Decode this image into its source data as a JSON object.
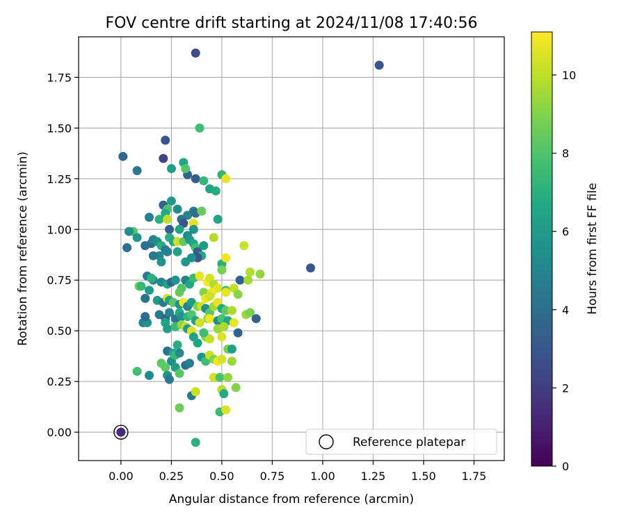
{
  "chart_data": {
    "type": "scatter",
    "title": "FOV centre drift starting at 2024/11/08 17:40:56",
    "xlabel": "Angular distance from reference (arcmin)",
    "ylabel": "Rotation from reference (arcmin)",
    "xlim": [
      -0.21,
      1.9
    ],
    "ylim": [
      -0.14,
      1.95
    ],
    "xticks": [
      0.0,
      0.25,
      0.5,
      0.75,
      1.0,
      1.25,
      1.5,
      1.75
    ],
    "xtick_labels": [
      "0.00",
      "0.25",
      "0.50",
      "0.75",
      "1.00",
      "1.25",
      "1.50",
      "1.75"
    ],
    "yticks": [
      0.0,
      0.25,
      0.5,
      0.75,
      1.0,
      1.25,
      1.5,
      1.75
    ],
    "ytick_labels": [
      "0.00",
      "0.25",
      "0.50",
      "0.75",
      "1.00",
      "1.25",
      "1.50",
      "1.75"
    ],
    "grid": true,
    "legend": {
      "placement": "lower-right",
      "entries": [
        "Reference platepar"
      ]
    },
    "colorbar": {
      "label": "Hours from first FF file",
      "colormap": "viridis",
      "range": [
        0,
        11.1
      ],
      "ticks": [
        0,
        2,
        4,
        6,
        8,
        10
      ],
      "tick_labels": [
        "0",
        "2",
        "4",
        "6",
        "8",
        "10"
      ]
    },
    "reference_point": {
      "x": 0.0,
      "y": 0.0
    },
    "series": [
      {
        "values": [
          [
            0.37,
            1.87,
            2.6
          ],
          [
            1.28,
            1.81,
            3.0
          ],
          [
            0.94,
            0.81,
            3.0
          ],
          [
            0.22,
            1.44,
            2.9
          ],
          [
            0.21,
            1.35,
            2.2
          ],
          [
            0.01,
            1.36,
            3.7
          ],
          [
            0.08,
            1.29,
            4.4
          ],
          [
            0.25,
            1.3,
            6.1
          ],
          [
            0.33,
            1.27,
            3.6
          ],
          [
            0.37,
            1.25,
            3.3
          ],
          [
            0.31,
            1.33,
            6.5
          ],
          [
            0.32,
            1.3,
            8.1
          ],
          [
            0.39,
            1.5,
            7.6
          ],
          [
            0.41,
            1.24,
            7.3
          ],
          [
            0.44,
            1.2,
            6.4
          ],
          [
            0.47,
            1.19,
            6.8
          ],
          [
            0.5,
            1.27,
            7.3
          ],
          [
            0.52,
            1.25,
            10.7
          ],
          [
            0.21,
            1.12,
            3.5
          ],
          [
            0.25,
            1.14,
            5.9
          ],
          [
            0.23,
            1.1,
            7.9
          ],
          [
            0.22,
            1.08,
            6.7
          ],
          [
            0.28,
            1.1,
            5.3
          ],
          [
            0.33,
            1.07,
            5.1
          ],
          [
            0.36,
            1.09,
            4.5
          ],
          [
            0.37,
            1.08,
            3.9
          ],
          [
            0.4,
            1.09,
            8.5
          ],
          [
            0.19,
            1.05,
            7.1
          ],
          [
            0.23,
            1.05,
            10.0
          ],
          [
            0.3,
            1.05,
            4.2
          ],
          [
            0.14,
            1.06,
            4.8
          ],
          [
            0.31,
            1.03,
            2.8
          ],
          [
            0.36,
            1.03,
            10.6
          ],
          [
            0.24,
            1.0,
            3.3
          ],
          [
            0.29,
            1.0,
            6.5
          ],
          [
            0.36,
            1.0,
            5.6
          ],
          [
            0.48,
            1.05,
            6.5
          ],
          [
            0.06,
            0.99,
            8.0
          ],
          [
            0.04,
            0.99,
            5.4
          ],
          [
            0.03,
            0.91,
            4.0
          ],
          [
            0.08,
            0.96,
            5.8
          ],
          [
            0.12,
            0.92,
            4.1
          ],
          [
            0.15,
            0.93,
            3.9
          ],
          [
            0.16,
            0.95,
            4.9
          ],
          [
            0.18,
            0.94,
            5.4
          ],
          [
            0.2,
            0.92,
            6.9
          ],
          [
            0.22,
            0.9,
            4.5
          ],
          [
            0.24,
            0.96,
            7.0
          ],
          [
            0.26,
            0.94,
            6.6
          ],
          [
            0.28,
            0.94,
            10.2
          ],
          [
            0.31,
            0.94,
            8.4
          ],
          [
            0.33,
            0.97,
            5.3
          ],
          [
            0.34,
            0.95,
            5.8
          ],
          [
            0.36,
            0.93,
            6.4
          ],
          [
            0.37,
            0.91,
            7.6
          ],
          [
            0.38,
            0.89,
            3.2
          ],
          [
            0.4,
            0.87,
            6.7
          ],
          [
            0.41,
            0.92,
            6.1
          ],
          [
            0.46,
            0.96,
            9.8
          ],
          [
            0.38,
            0.86,
            2.8
          ],
          [
            0.28,
            0.89,
            6.3
          ],
          [
            0.23,
            0.89,
            4.8
          ],
          [
            0.19,
            0.87,
            5.2
          ],
          [
            0.16,
            0.87,
            4.4
          ],
          [
            0.2,
            0.84,
            5.6
          ],
          [
            0.32,
            0.84,
            5.9
          ],
          [
            0.35,
            0.86,
            5.5
          ],
          [
            0.5,
            0.83,
            7.0
          ],
          [
            0.52,
            0.86,
            10.9
          ],
          [
            0.61,
            0.92,
            10.2
          ],
          [
            0.13,
            0.77,
            4.6
          ],
          [
            0.16,
            0.75,
            5.3
          ],
          [
            0.15,
            0.76,
            7.0
          ],
          [
            0.2,
            0.74,
            5.2
          ],
          [
            0.23,
            0.73,
            6.4
          ],
          [
            0.09,
            0.72,
            8.8
          ],
          [
            0.1,
            0.72,
            7.3
          ],
          [
            0.14,
            0.7,
            6.1
          ],
          [
            0.25,
            0.74,
            3.6
          ],
          [
            0.27,
            0.75,
            5.7
          ],
          [
            0.3,
            0.71,
            8.1
          ],
          [
            0.32,
            0.75,
            4.9
          ],
          [
            0.34,
            0.73,
            6.6
          ],
          [
            0.36,
            0.76,
            7.5
          ],
          [
            0.39,
            0.77,
            10.8
          ],
          [
            0.43,
            0.74,
            11.0
          ],
          [
            0.44,
            0.76,
            10.4
          ],
          [
            0.46,
            0.73,
            9.8
          ],
          [
            0.48,
            0.71,
            10.6
          ],
          [
            0.5,
            0.8,
            8.8
          ],
          [
            0.52,
            0.7,
            7.7
          ],
          [
            0.56,
            0.71,
            10.1
          ],
          [
            0.58,
            0.68,
            9.1
          ],
          [
            0.59,
            0.75,
            3.5
          ],
          [
            0.64,
            0.79,
            9.8
          ],
          [
            0.63,
            0.75,
            9.6
          ],
          [
            0.69,
            0.78,
            9.3
          ],
          [
            0.29,
            0.69,
            8.4
          ],
          [
            0.41,
            0.69,
            9.0
          ],
          [
            0.45,
            0.69,
            10.9
          ],
          [
            0.52,
            0.69,
            10.7
          ],
          [
            0.42,
            0.66,
            10.8
          ],
          [
            0.44,
            0.67,
            10.3
          ],
          [
            0.12,
            0.66,
            4.2
          ],
          [
            0.18,
            0.65,
            6.0
          ],
          [
            0.21,
            0.64,
            4.5
          ],
          [
            0.23,
            0.66,
            10.4
          ],
          [
            0.24,
            0.65,
            6.3
          ],
          [
            0.26,
            0.64,
            8.2
          ],
          [
            0.29,
            0.63,
            5.6
          ],
          [
            0.31,
            0.64,
            10.9
          ],
          [
            0.33,
            0.62,
            4.8
          ],
          [
            0.35,
            0.64,
            6.1
          ],
          [
            0.38,
            0.62,
            9.0
          ],
          [
            0.4,
            0.62,
            10.3
          ],
          [
            0.42,
            0.61,
            5.5
          ],
          [
            0.44,
            0.59,
            8.2
          ],
          [
            0.46,
            0.62,
            9.5
          ],
          [
            0.48,
            0.64,
            10.7
          ],
          [
            0.5,
            0.61,
            6.7
          ],
          [
            0.52,
            0.6,
            8.4
          ],
          [
            0.55,
            0.6,
            9.7
          ],
          [
            0.58,
            0.49,
            3.5
          ],
          [
            0.62,
            0.58,
            9.4
          ],
          [
            0.64,
            0.59,
            8.9
          ],
          [
            0.67,
            0.56,
            3.4
          ],
          [
            0.19,
            0.58,
            4.5
          ],
          [
            0.22,
            0.56,
            3.7
          ],
          [
            0.24,
            0.59,
            5.0
          ],
          [
            0.27,
            0.56,
            4.4
          ],
          [
            0.29,
            0.59,
            6.8
          ],
          [
            0.3,
            0.57,
            5.6
          ],
          [
            0.33,
            0.57,
            7.2
          ],
          [
            0.35,
            0.58,
            8.0
          ],
          [
            0.37,
            0.55,
            6.3
          ],
          [
            0.39,
            0.54,
            10.3
          ],
          [
            0.43,
            0.56,
            9.3
          ],
          [
            0.44,
            0.56,
            10.9
          ],
          [
            0.48,
            0.55,
            5.3
          ],
          [
            0.5,
            0.56,
            7.9
          ],
          [
            0.53,
            0.55,
            6.6
          ],
          [
            0.56,
            0.54,
            10.7
          ],
          [
            0.11,
            0.54,
            4.9
          ],
          [
            0.13,
            0.54,
            5.6
          ],
          [
            0.12,
            0.57,
            3.8
          ],
          [
            0.22,
            0.54,
            6.4
          ],
          [
            0.23,
            0.51,
            6.2
          ],
          [
            0.27,
            0.52,
            7.5
          ],
          [
            0.3,
            0.53,
            9.2
          ],
          [
            0.32,
            0.52,
            10.1
          ],
          [
            0.33,
            0.51,
            5.9
          ],
          [
            0.35,
            0.5,
            10.6
          ],
          [
            0.42,
            0.47,
            9.3
          ],
          [
            0.44,
            0.46,
            10.1
          ],
          [
            0.48,
            0.51,
            9.4
          ],
          [
            0.5,
            0.47,
            10.5
          ],
          [
            0.51,
            0.52,
            9.7
          ],
          [
            0.36,
            0.47,
            6.3
          ],
          [
            0.38,
            0.44,
            6.6
          ],
          [
            0.41,
            0.49,
            7.6
          ],
          [
            0.23,
            0.4,
            4.2
          ],
          [
            0.26,
            0.39,
            6.5
          ],
          [
            0.28,
            0.43,
            6.9
          ],
          [
            0.25,
            0.35,
            5.4
          ],
          [
            0.27,
            0.38,
            7.4
          ],
          [
            0.29,
            0.39,
            5.3
          ],
          [
            0.32,
            0.33,
            4.0
          ],
          [
            0.34,
            0.34,
            4.7
          ],
          [
            0.4,
            0.37,
            5.6
          ],
          [
            0.42,
            0.35,
            7.7
          ],
          [
            0.44,
            0.38,
            10.2
          ],
          [
            0.46,
            0.36,
            9.0
          ],
          [
            0.48,
            0.35,
            10.9
          ],
          [
            0.5,
            0.36,
            10.4
          ],
          [
            0.53,
            0.41,
            8.8
          ],
          [
            0.55,
            0.41,
            6.3
          ],
          [
            0.55,
            0.35,
            9.4
          ],
          [
            0.2,
            0.34,
            8.3
          ],
          [
            0.22,
            0.32,
            8.3
          ],
          [
            0.27,
            0.32,
            6.1
          ],
          [
            0.08,
            0.3,
            7.7
          ],
          [
            0.14,
            0.28,
            5.2
          ],
          [
            0.23,
            0.28,
            5.6
          ],
          [
            0.24,
            0.26,
            4.5
          ],
          [
            0.29,
            0.29,
            8.2
          ],
          [
            0.46,
            0.27,
            10.3
          ],
          [
            0.49,
            0.27,
            7.9
          ],
          [
            0.53,
            0.27,
            9.3
          ],
          [
            0.57,
            0.22,
            9.0
          ],
          [
            0.35,
            0.18,
            4.5
          ],
          [
            0.37,
            0.2,
            10.2
          ],
          [
            0.5,
            0.21,
            9.9
          ],
          [
            0.51,
            0.19,
            6.7
          ],
          [
            0.29,
            0.12,
            8.6
          ],
          [
            0.49,
            0.1,
            7.5
          ],
          [
            0.52,
            0.11,
            10.5
          ],
          [
            0.37,
            -0.05,
            7.0
          ]
        ]
      }
    ]
  }
}
